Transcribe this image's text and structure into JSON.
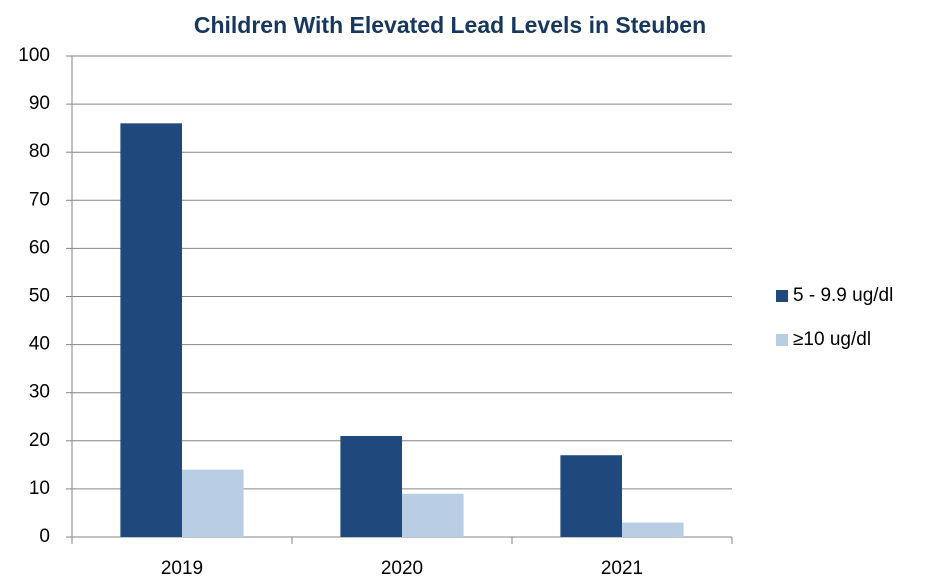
{
  "chart_data": {
    "type": "bar",
    "title": "Children With Elevated Lead Levels in Steuben",
    "categories": [
      "2019",
      "2020",
      "2021"
    ],
    "series": [
      {
        "name": "5 - 9.9 ug/dl",
        "color": "#1f497d",
        "values": [
          86,
          21,
          17
        ]
      },
      {
        "name": "≥10 ug/dl",
        "color": "#b9cde5",
        "values": [
          14,
          9,
          3
        ]
      }
    ],
    "ylim": [
      0,
      100
    ],
    "yticks": [
      0,
      10,
      20,
      30,
      40,
      50,
      60,
      70,
      80,
      90,
      100
    ],
    "grid": true,
    "legend": "right"
  }
}
